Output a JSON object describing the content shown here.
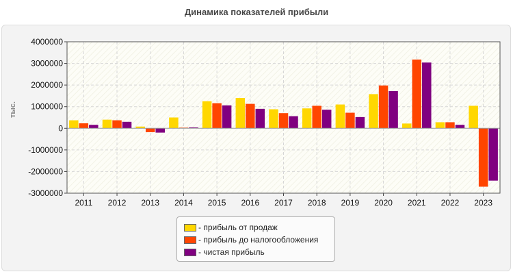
{
  "colors": {
    "sales_profit": "#ffd700",
    "pretax_profit": "#ff4500",
    "net_profit": "#800080"
  },
  "chart_data": {
    "type": "bar",
    "title": "Динамика показателей прибыли",
    "ylabel": "тыс.",
    "xlabel": "",
    "ylim": [
      -3000000,
      4000000
    ],
    "yticks": [
      -3000000,
      -2000000,
      -1000000,
      0,
      1000000,
      2000000,
      3000000,
      4000000
    ],
    "ytick_labels": [
      "-3000000",
      "-2000000",
      "-1000000",
      "0",
      "1000000",
      "2000000",
      "3000000",
      "4000000"
    ],
    "grid": true,
    "legend_position": "bottom-center",
    "categories": [
      "2011",
      "2012",
      "2013",
      "2014",
      "2015",
      "2016",
      "2017",
      "2018",
      "2019",
      "2020",
      "2021",
      "2022",
      "2023"
    ],
    "series": [
      {
        "name": "- прибыль от продаж",
        "values": [
          370000,
          400000,
          80000,
          500000,
          1250000,
          1400000,
          880000,
          920000,
          1100000,
          1580000,
          220000,
          280000,
          1040000
        ]
      },
      {
        "name": "- прибыль до налогообложения",
        "values": [
          230000,
          370000,
          -180000,
          30000,
          1160000,
          1130000,
          700000,
          1040000,
          720000,
          1980000,
          3180000,
          280000,
          -2700000
        ]
      },
      {
        "name": "- чистая прибыль",
        "values": [
          160000,
          300000,
          -200000,
          40000,
          1060000,
          900000,
          560000,
          860000,
          520000,
          1720000,
          3040000,
          160000,
          -2420000
        ]
      }
    ]
  }
}
